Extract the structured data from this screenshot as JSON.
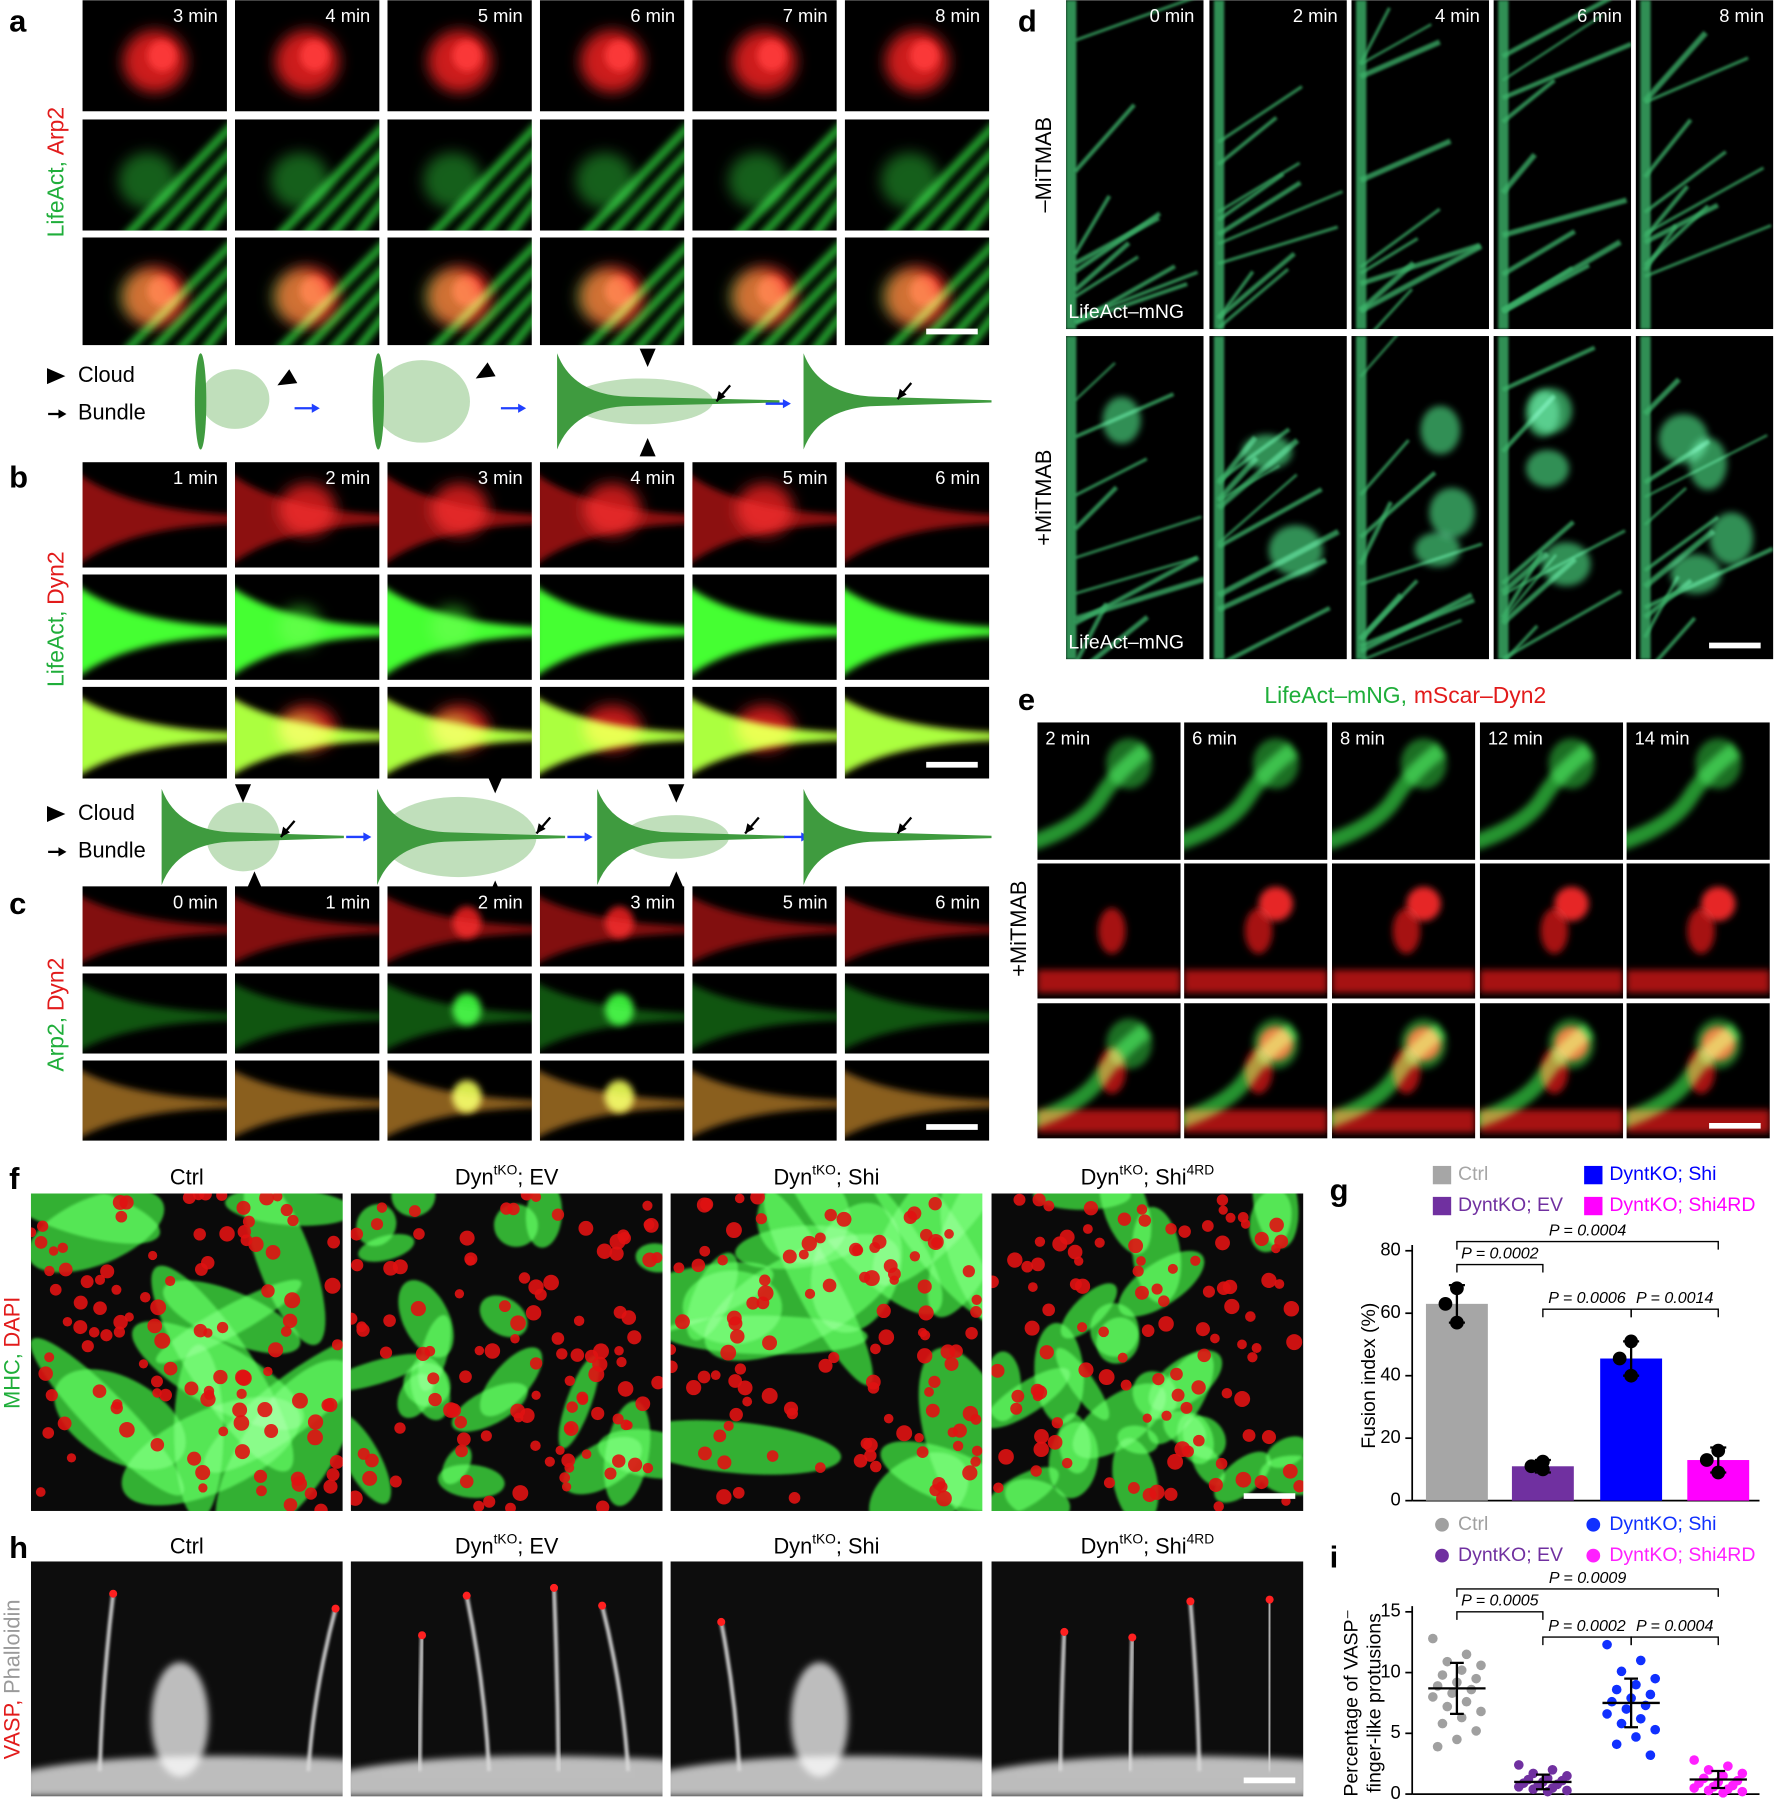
{
  "panel_labels": [
    "a",
    "b",
    "c",
    "d",
    "e",
    "f",
    "g",
    "h",
    "i"
  ],
  "a": {
    "channels": [
      "LifeAct,",
      "Arp2"
    ],
    "times": [
      "3 min",
      "4 min",
      "5 min",
      "6 min",
      "7 min",
      "8 min"
    ],
    "legend": [
      "Cloud",
      "Bundle"
    ]
  },
  "b": {
    "channels": [
      "LifeAct,",
      "Dyn2"
    ],
    "times": [
      "1 min",
      "2 min",
      "3 min",
      "4 min",
      "5 min",
      "6 min"
    ],
    "legend": [
      "Cloud",
      "Bundle"
    ]
  },
  "c": {
    "channels": [
      "Arp2,",
      "Dyn2"
    ],
    "times": [
      "0 min",
      "1 min",
      "2 min",
      "3 min",
      "5 min",
      "6 min"
    ]
  },
  "d": {
    "conditions": [
      "–MiTMAB",
      "+MiTMAB"
    ],
    "times": [
      "0 min",
      "2 min",
      "4 min",
      "6 min",
      "8 min"
    ],
    "marker": "LifeAct–mNG"
  },
  "e": {
    "title": [
      "LifeAct–mNG,",
      "mScar–Dyn2"
    ],
    "condition": "+MiTMAB",
    "times": [
      "2 min",
      "6 min",
      "8 min",
      "12 min",
      "14 min"
    ]
  },
  "f": {
    "channels": [
      "MHC,",
      "DAPI"
    ],
    "columns": [
      {
        "base": "Ctrl"
      },
      {
        "base": "Dyn",
        "sup": "tKO",
        "rest": "; EV"
      },
      {
        "base": "Dyn",
        "sup": "tKO",
        "rest": "; Shi"
      },
      {
        "base": "Dyn",
        "sup": "tKO",
        "rest": "; Shi",
        "sup2": "4RD"
      }
    ]
  },
  "h": {
    "channels": [
      "VASP,",
      "Phalloidin"
    ],
    "columns": [
      {
        "base": "Ctrl"
      },
      {
        "base": "Dyn",
        "sup": "tKO",
        "rest": "; EV"
      },
      {
        "base": "Dyn",
        "sup": "tKO",
        "rest": "; Shi"
      },
      {
        "base": "Dyn",
        "sup": "tKO",
        "rest": "; Shi",
        "sup2": "4RD"
      }
    ]
  },
  "chart_data": [
    {
      "type": "bar",
      "y_label": "Fusion index (%)",
      "categories": [
        "Ctrl",
        "DyntKO; EV",
        "DyntKO; Shi",
        "DyntKO; Shi4RD"
      ],
      "colors": [
        "#a6a6a6",
        "#7030a0",
        "#0000ff",
        "#ff00ff"
      ],
      "values": [
        63,
        11,
        45.5,
        13
      ],
      "errors": [
        6,
        2,
        5.5,
        4
      ],
      "points": [
        [
          68,
          63,
          57
        ],
        [
          12.5,
          11,
          10
        ],
        [
          51,
          45.5,
          40
        ],
        [
          16,
          13,
          9
        ]
      ],
      "ylim": [
        0,
        80
      ],
      "yticks": [
        0,
        20,
        40,
        60,
        80
      ],
      "annotations": [
        "P = 0.0004",
        "P = 0.0002",
        "P = 0.0006",
        "P = 0.0014"
      ]
    },
    {
      "type": "strip",
      "y_label": [
        "Percentage of VASP⁻",
        "finger-like protusions"
      ],
      "categories": [
        "Ctrl",
        "DyntKO; EV",
        "DyntKO; Shi",
        "DyntKO; Shi4RD"
      ],
      "colors": [
        "#a0a0a0",
        "#7030a0",
        "#1030ff",
        "#ff20ff"
      ],
      "values": [
        8.7,
        1.0,
        7.5,
        1.2
      ],
      "errors": [
        2.1,
        0.6,
        2.0,
        0.7
      ],
      "points": [
        [
          12.8,
          11.5,
          10.9,
          10.6,
          10.2,
          9.8,
          9.5,
          9.2,
          8.9,
          8.6,
          8.3,
          8.0,
          7.6,
          7.2,
          6.8,
          6.3,
          5.8,
          5.2,
          4.5,
          3.9
        ],
        [
          2.4,
          2.0,
          1.7,
          1.5,
          1.3,
          1.2,
          1.1,
          1.0,
          0.9,
          0.8,
          0.7,
          0.6,
          0.5,
          0.4,
          0.3,
          0.2
        ],
        [
          12.3,
          11.0,
          10.1,
          9.5,
          9.0,
          8.6,
          8.2,
          7.9,
          7.6,
          7.3,
          7.0,
          6.6,
          6.2,
          5.8,
          5.3,
          4.7,
          4.1,
          3.2
        ],
        [
          2.8,
          2.3,
          2.0,
          1.7,
          1.5,
          1.3,
          1.1,
          1.0,
          0.9,
          0.7,
          0.6,
          0.5,
          0.4,
          0.3,
          0.2,
          0.1
        ]
      ],
      "ylim": [
        0,
        15
      ],
      "yticks": [
        0,
        5,
        10,
        15
      ],
      "annotations": [
        "P = 0.0009",
        "P = 0.0005",
        "P = 0.0002",
        "P = 0.0004"
      ]
    }
  ]
}
